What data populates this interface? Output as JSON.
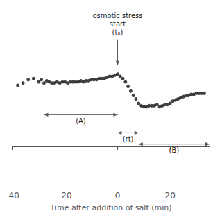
{
  "chart_data": {
    "type": "scatter",
    "xlabel": "Time after addition of salt (min)",
    "xlim": [
      -40,
      35
    ],
    "ylim": [
      -0.35,
      1.0
    ],
    "xticks": [
      -40,
      -20,
      0,
      20
    ],
    "tick_labels": "x",
    "grid": false,
    "color": "#111111",
    "x": [
      -38,
      -36,
      -34,
      -32,
      -30,
      -29,
      -28,
      -27,
      -26,
      -25,
      -24,
      -23,
      -22,
      -21,
      -20,
      -19,
      -18,
      -17,
      -16,
      -15,
      -14,
      -13,
      -12,
      -11,
      -10,
      -9,
      -8,
      -7,
      -6,
      -5,
      -4,
      -3,
      -2,
      -1,
      0,
      1,
      2,
      3,
      4,
      5,
      6,
      7,
      8,
      9,
      10,
      11,
      12,
      13,
      14,
      15,
      16,
      17,
      18,
      19,
      20,
      21,
      22,
      23,
      24,
      25,
      26,
      27,
      28,
      29,
      30,
      31,
      32,
      33
    ],
    "values": [
      0.54,
      0.56,
      0.59,
      0.6,
      0.57,
      0.59,
      0.56,
      0.58,
      0.57,
      0.56,
      0.56,
      0.57,
      0.56,
      0.57,
      0.57,
      0.56,
      0.57,
      0.57,
      0.57,
      0.57,
      0.58,
      0.57,
      0.58,
      0.58,
      0.59,
      0.59,
      0.59,
      0.6,
      0.6,
      0.6,
      0.61,
      0.62,
      0.62,
      0.63,
      0.64,
      0.62,
      0.6,
      0.57,
      0.53,
      0.49,
      0.45,
      0.42,
      0.38,
      0.36,
      0.35,
      0.35,
      0.36,
      0.36,
      0.36,
      0.37,
      0.35,
      0.36,
      0.37,
      0.37,
      0.38,
      0.4,
      0.41,
      0.42,
      0.43,
      0.44,
      0.45,
      0.45,
      0.46,
      0.46,
      0.47,
      0.47,
      0.47,
      0.47
    ],
    "annotations": [
      {
        "text": "osmotic stress\nstart\n(t₀)",
        "x": 0,
        "y": 0.97,
        "arrow_to": [
          0,
          0.72
        ]
      },
      {
        "text": "(A)",
        "span": [
          -28,
          0
        ],
        "y": 0.28
      },
      {
        "text": "(rt)",
        "span": [
          0,
          8
        ],
        "y": 0.12
      },
      {
        "text": "(B)",
        "span": [
          8,
          35
        ],
        "y": 0.02
      }
    ]
  }
}
